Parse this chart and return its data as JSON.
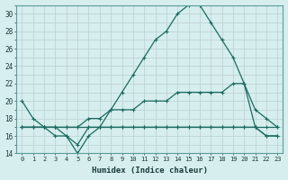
{
  "xlabel": "Humidex (Indice chaleur)",
  "bg_color": "#d6eeed",
  "grid_color": "#c8d8d8",
  "line_color": "#1a6b60",
  "xlim": [
    -0.5,
    23.5
  ],
  "ylim": [
    14,
    31
  ],
  "xticks": [
    0,
    1,
    2,
    3,
    4,
    5,
    6,
    7,
    8,
    9,
    10,
    11,
    12,
    13,
    14,
    15,
    16,
    17,
    18,
    19,
    20,
    21,
    22,
    23
  ],
  "yticks": [
    14,
    16,
    18,
    20,
    22,
    24,
    26,
    28,
    30
  ],
  "line1_x": [
    0,
    1,
    2,
    3,
    4,
    5,
    6,
    7,
    8,
    9,
    10,
    11,
    12,
    13,
    14,
    15,
    16,
    17,
    18,
    19,
    20,
    21,
    22,
    23
  ],
  "line1_y": [
    20,
    18,
    17,
    17,
    16,
    15,
    17,
    17,
    19,
    21,
    23,
    25,
    27,
    28,
    30,
    31,
    31,
    29,
    27,
    25,
    22,
    17,
    16,
    16
  ],
  "line2_x": [
    0,
    1,
    2,
    3,
    4,
    5,
    6,
    7,
    8,
    9,
    10,
    11,
    12,
    13,
    14,
    15,
    16,
    17,
    18,
    19,
    20,
    21,
    22,
    23
  ],
  "line2_y": [
    17,
    17,
    17,
    17,
    17,
    17,
    18,
    18,
    19,
    19,
    19,
    20,
    20,
    20,
    21,
    21,
    21,
    21,
    21,
    22,
    22,
    19,
    18,
    17
  ],
  "line3_x": [
    0,
    1,
    2,
    3,
    4,
    5,
    6,
    7,
    8,
    9,
    10,
    11,
    12,
    13,
    14,
    15,
    16,
    17,
    18,
    19,
    20,
    21,
    22,
    23
  ],
  "line3_y": [
    17,
    17,
    17,
    17,
    17,
    17,
    17,
    17,
    17,
    17,
    17,
    17,
    17,
    17,
    17,
    17,
    17,
    17,
    17,
    17,
    17,
    17,
    17,
    17
  ],
  "line4_x": [
    0,
    1,
    2,
    3,
    4,
    5,
    6,
    7,
    8,
    9,
    10,
    11,
    12,
    13,
    14,
    15,
    16,
    17,
    18,
    19,
    20,
    21,
    22,
    23
  ],
  "line4_y": [
    17,
    17,
    17,
    16,
    16,
    14,
    16,
    17,
    17,
    17,
    17,
    17,
    17,
    17,
    17,
    17,
    17,
    17,
    17,
    17,
    17,
    17,
    16,
    16
  ]
}
